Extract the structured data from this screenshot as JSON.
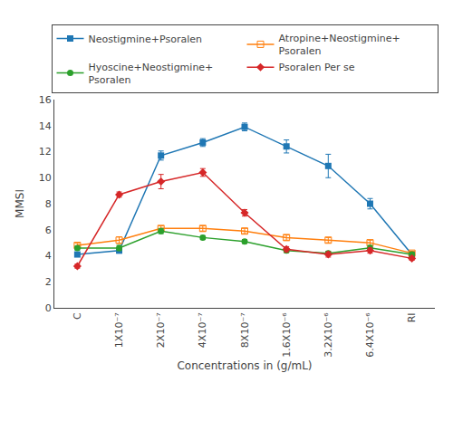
{
  "chart_data": {
    "type": "line",
    "categories": [
      "C",
      "1X10⁻⁷",
      "2X10⁻⁷",
      "4X10⁻⁷",
      "8X10⁻⁷",
      "1.6X10⁻⁶",
      "3.2X10⁻⁶",
      "6.4X10⁻⁶",
      "RI"
    ],
    "series": [
      {
        "name": "Neostigmine+Psoralen",
        "marker": "square",
        "values": [
          4.1,
          4.4,
          11.7,
          12.7,
          13.9,
          12.4,
          10.9,
          8.0,
          4.1
        ],
        "yerr": [
          0.15,
          0.2,
          0.35,
          0.3,
          0.3,
          0.5,
          0.9,
          0.4,
          0.2
        ]
      },
      {
        "name": "Atropine+Neostigmine+\nPsoralen",
        "marker": "square-open",
        "values": [
          4.8,
          5.2,
          6.1,
          6.1,
          5.9,
          5.4,
          5.2,
          5.0,
          4.2
        ],
        "yerr": [
          0.15,
          0.25,
          0.2,
          0.2,
          0.2,
          0.2,
          0.2,
          0.2,
          0.15
        ]
      },
      {
        "name": "Hyoscine+Neostigmine+\nPsoralen",
        "marker": "circle",
        "values": [
          4.6,
          4.6,
          5.9,
          5.4,
          5.1,
          4.4,
          4.2,
          4.6,
          4.1
        ],
        "yerr": [
          0.15,
          0.2,
          0.2,
          0.15,
          0.15,
          0.15,
          0.15,
          0.2,
          0.15
        ]
      },
      {
        "name": "Psoralen Per se",
        "marker": "diamond",
        "values": [
          3.2,
          8.7,
          9.7,
          10.4,
          7.3,
          4.5,
          4.1,
          4.4,
          3.8
        ],
        "yerr": [
          0.15,
          0.2,
          0.55,
          0.3,
          0.25,
          0.2,
          0.2,
          0.2,
          0.15
        ]
      }
    ],
    "xlabel": "Concentrations in (g/mL)",
    "ylabel": "MMSI",
    "ylim": [
      0,
      16
    ],
    "yticks": [
      0,
      2,
      4,
      6,
      8,
      10,
      12,
      14,
      16
    ],
    "grid": false,
    "legend": "top"
  }
}
